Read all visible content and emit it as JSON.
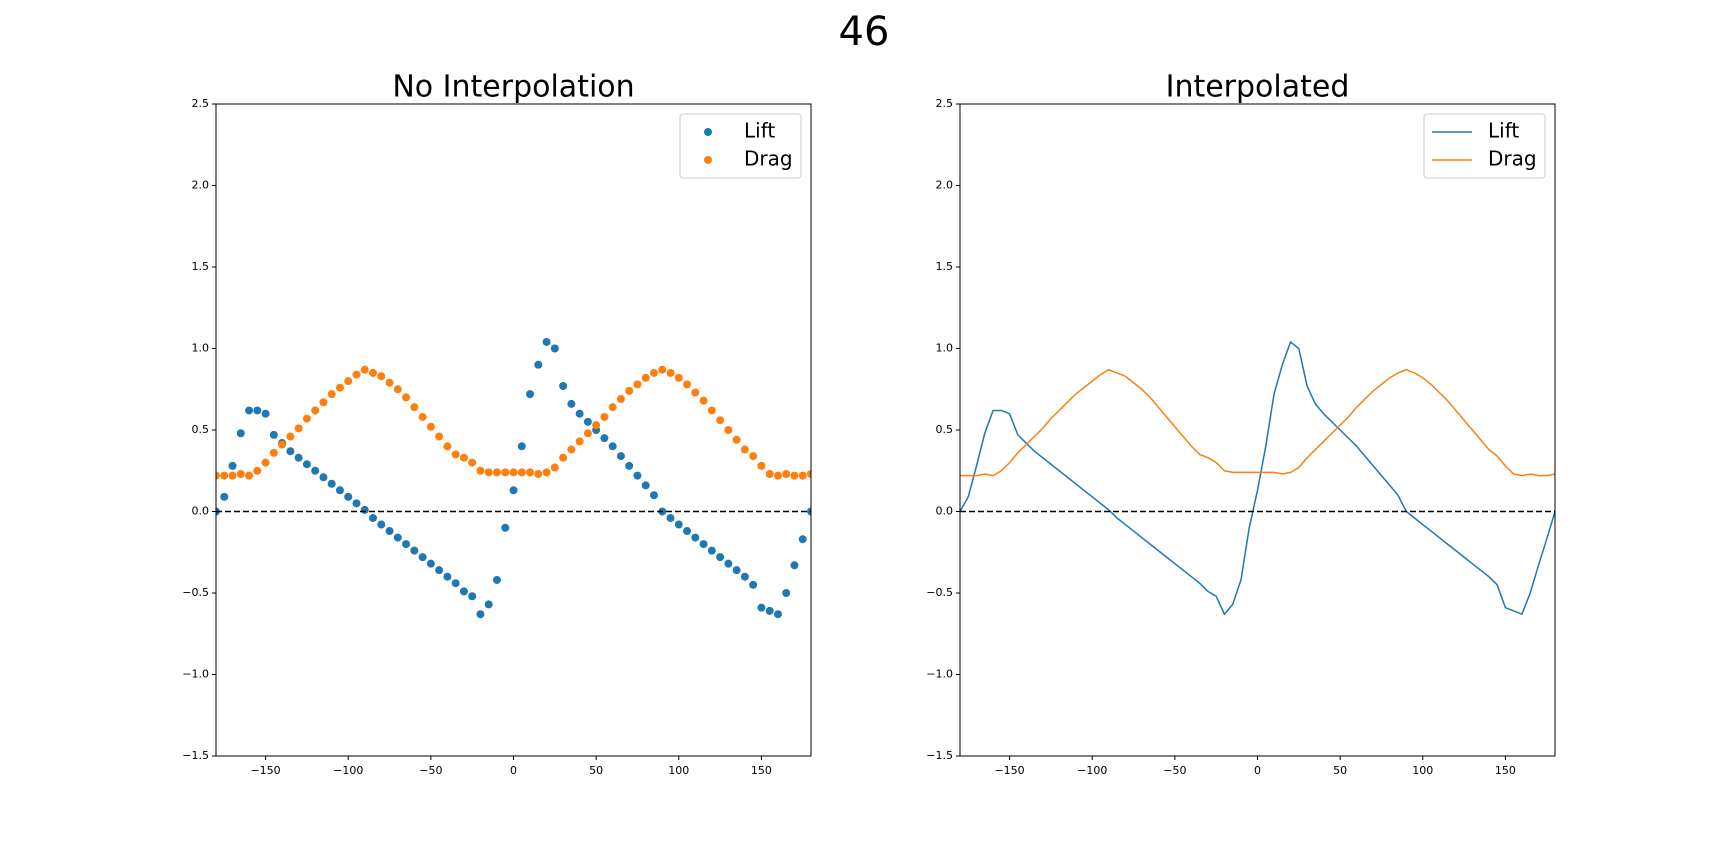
{
  "title": "46",
  "chart_data": [
    {
      "type": "scatter",
      "title": "No Interpolation",
      "x": [
        -180,
        -175,
        -170,
        -165,
        -160,
        -155,
        -150,
        -145,
        -140,
        -135,
        -130,
        -125,
        -120,
        -115,
        -110,
        -105,
        -100,
        -95,
        -90,
        -85,
        -80,
        -75,
        -70,
        -65,
        -60,
        -55,
        -50,
        -45,
        -40,
        -35,
        -30,
        -25,
        -20,
        -15,
        -10,
        -5,
        0,
        5,
        10,
        15,
        20,
        25,
        30,
        35,
        40,
        45,
        50,
        55,
        60,
        65,
        70,
        75,
        80,
        85,
        90,
        95,
        100,
        105,
        110,
        115,
        120,
        125,
        130,
        135,
        140,
        145,
        150,
        155,
        160,
        165,
        170,
        175,
        180
      ],
      "series": [
        {
          "name": "Lift",
          "color": "#1f77b4",
          "values": [
            0,
            0.09,
            0.28,
            0.48,
            0.62,
            0.62,
            0.6,
            0.47,
            0.42,
            0.37,
            0.33,
            0.29,
            0.25,
            0.21,
            0.17,
            0.13,
            0.09,
            0.05,
            0.01,
            -0.04,
            -0.08,
            -0.12,
            -0.16,
            -0.2,
            -0.24,
            -0.28,
            -0.32,
            -0.36,
            -0.4,
            -0.44,
            -0.49,
            -0.52,
            -0.63,
            -0.57,
            -0.42,
            -0.1,
            0.13,
            0.4,
            0.72,
            0.9,
            1.04,
            1.0,
            0.77,
            0.66,
            0.6,
            0.55,
            0.5,
            0.45,
            0.4,
            0.34,
            0.28,
            0.22,
            0.16,
            0.1,
            0.0,
            -0.04,
            -0.08,
            -0.12,
            -0.16,
            -0.2,
            -0.24,
            -0.28,
            -0.32,
            -0.36,
            -0.4,
            -0.45,
            -0.59,
            -0.61,
            -0.63,
            -0.5,
            -0.33,
            -0.17,
            0
          ]
        },
        {
          "name": "Drag",
          "color": "#ff7f0e",
          "values": [
            0.22,
            0.22,
            0.22,
            0.23,
            0.22,
            0.25,
            0.3,
            0.36,
            0.41,
            0.46,
            0.51,
            0.57,
            0.62,
            0.67,
            0.72,
            0.76,
            0.8,
            0.84,
            0.87,
            0.85,
            0.83,
            0.79,
            0.75,
            0.7,
            0.64,
            0.58,
            0.52,
            0.46,
            0.4,
            0.35,
            0.33,
            0.3,
            0.25,
            0.24,
            0.24,
            0.24,
            0.24,
            0.24,
            0.24,
            0.23,
            0.24,
            0.27,
            0.33,
            0.38,
            0.43,
            0.48,
            0.53,
            0.58,
            0.64,
            0.69,
            0.74,
            0.78,
            0.82,
            0.85,
            0.87,
            0.85,
            0.82,
            0.78,
            0.73,
            0.68,
            0.62,
            0.56,
            0.5,
            0.44,
            0.38,
            0.34,
            0.28,
            0.23,
            0.22,
            0.23,
            0.22,
            0.22,
            0.23
          ]
        }
      ],
      "xlim": [
        -180,
        180
      ],
      "ylim": [
        -1.5,
        2.5
      ],
      "xticks": [
        {
          "value": -150,
          "label": "−150"
        },
        {
          "value": -100,
          "label": "−100"
        },
        {
          "value": -50,
          "label": "−50"
        },
        0,
        50,
        100,
        150
      ],
      "yticks": [
        {
          "value": -1.5,
          "label": "−1.5"
        },
        {
          "value": -1,
          "label": "−1.0"
        },
        {
          "value": -0.5,
          "label": "−0.5"
        },
        {
          "value": 0,
          "label": "0.0"
        },
        0.5,
        {
          "value": 1,
          "label": "1.0"
        },
        1.5,
        {
          "value": 2,
          "label": "2.0"
        },
        2.5
      ],
      "reference_line": 0,
      "legend": "upper right"
    },
    {
      "type": "line",
      "title": "Interpolated",
      "x": [
        -180,
        -175,
        -170,
        -165,
        -160,
        -155,
        -150,
        -145,
        -140,
        -135,
        -130,
        -125,
        -120,
        -115,
        -110,
        -105,
        -100,
        -95,
        -90,
        -85,
        -80,
        -75,
        -70,
        -65,
        -60,
        -55,
        -50,
        -45,
        -40,
        -35,
        -30,
        -25,
        -20,
        -15,
        -10,
        -5,
        0,
        5,
        10,
        15,
        20,
        25,
        30,
        35,
        40,
        45,
        50,
        55,
        60,
        65,
        70,
        75,
        80,
        85,
        90,
        95,
        100,
        105,
        110,
        115,
        120,
        125,
        130,
        135,
        140,
        145,
        150,
        155,
        160,
        165,
        170,
        175,
        180
      ],
      "series": [
        {
          "name": "Lift",
          "color": "#1f77b4",
          "values": [
            0,
            0.09,
            0.28,
            0.48,
            0.62,
            0.62,
            0.6,
            0.47,
            0.42,
            0.37,
            0.33,
            0.29,
            0.25,
            0.21,
            0.17,
            0.13,
            0.09,
            0.05,
            0.01,
            -0.04,
            -0.08,
            -0.12,
            -0.16,
            -0.2,
            -0.24,
            -0.28,
            -0.32,
            -0.36,
            -0.4,
            -0.44,
            -0.49,
            -0.52,
            -0.63,
            -0.57,
            -0.42,
            -0.1,
            0.13,
            0.4,
            0.72,
            0.9,
            1.04,
            1.0,
            0.77,
            0.66,
            0.6,
            0.55,
            0.5,
            0.45,
            0.4,
            0.34,
            0.28,
            0.22,
            0.16,
            0.1,
            0.0,
            -0.04,
            -0.08,
            -0.12,
            -0.16,
            -0.2,
            -0.24,
            -0.28,
            -0.32,
            -0.36,
            -0.4,
            -0.45,
            -0.59,
            -0.61,
            -0.63,
            -0.5,
            -0.33,
            -0.17,
            0
          ]
        },
        {
          "name": "Drag",
          "color": "#ff7f0e",
          "values": [
            0.22,
            0.22,
            0.22,
            0.23,
            0.22,
            0.25,
            0.3,
            0.36,
            0.41,
            0.46,
            0.51,
            0.57,
            0.62,
            0.67,
            0.72,
            0.76,
            0.8,
            0.84,
            0.87,
            0.85,
            0.83,
            0.79,
            0.75,
            0.7,
            0.64,
            0.58,
            0.52,
            0.46,
            0.4,
            0.35,
            0.33,
            0.3,
            0.25,
            0.24,
            0.24,
            0.24,
            0.24,
            0.24,
            0.24,
            0.23,
            0.24,
            0.27,
            0.33,
            0.38,
            0.43,
            0.48,
            0.53,
            0.58,
            0.64,
            0.69,
            0.74,
            0.78,
            0.82,
            0.85,
            0.87,
            0.85,
            0.82,
            0.78,
            0.73,
            0.68,
            0.62,
            0.56,
            0.5,
            0.44,
            0.38,
            0.34,
            0.28,
            0.23,
            0.22,
            0.23,
            0.22,
            0.22,
            0.23
          ]
        }
      ],
      "xlim": [
        -180,
        180
      ],
      "ylim": [
        -1.5,
        2.5
      ],
      "xticks": [
        {
          "value": -150,
          "label": "−150"
        },
        {
          "value": -100,
          "label": "−100"
        },
        {
          "value": -50,
          "label": "−50"
        },
        0,
        50,
        100,
        150
      ],
      "yticks": [
        {
          "value": -1.5,
          "label": "−1.5"
        },
        {
          "value": -1,
          "label": "−1.0"
        },
        {
          "value": -0.5,
          "label": "−0.5"
        },
        {
          "value": 0,
          "label": "0.0"
        },
        0.5,
        {
          "value": 1,
          "label": "1.0"
        },
        1.5,
        {
          "value": 2,
          "label": "2.0"
        },
        2.5
      ],
      "reference_line": 0,
      "legend": "upper right"
    }
  ]
}
